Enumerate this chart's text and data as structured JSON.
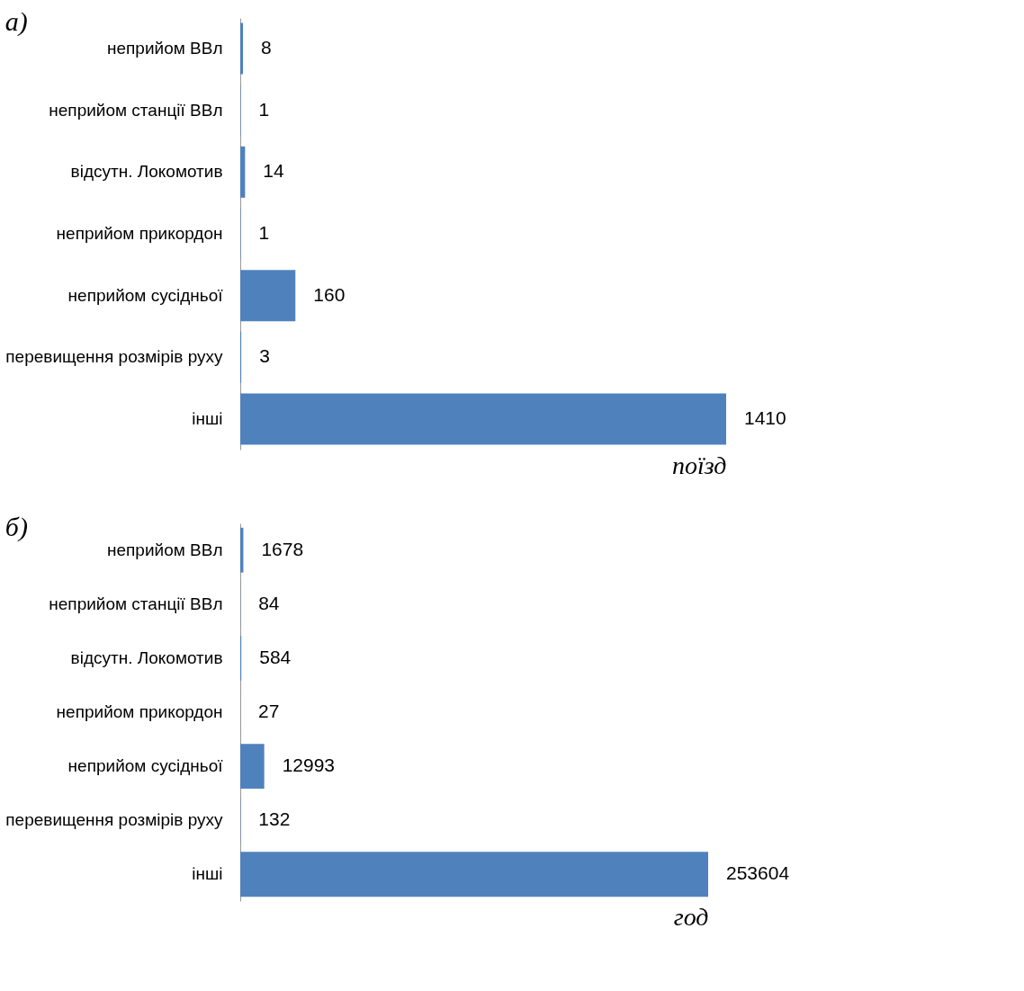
{
  "chart_data": [
    {
      "type": "bar",
      "orientation": "horizontal",
      "title": "а)",
      "xlabel": "поїзд",
      "data_labels": true,
      "color": "#4f81bd",
      "categories": [
        "неприйом ВВл",
        "неприйом станції ВВл",
        "відсутн. Локомотив",
        "неприйом прикордон",
        "неприйом сусідньої",
        "перевищення розмірів руху",
        "інші"
      ],
      "values": [
        8,
        1,
        14,
        1,
        160,
        3,
        1410
      ]
    },
    {
      "type": "bar",
      "orientation": "horizontal",
      "title": "б)",
      "xlabel": "год",
      "data_labels": true,
      "color": "#4f81bd",
      "categories": [
        "неприйом ВВл",
        "неприйом станції ВВл",
        "відсутн. Локомотив",
        "неприйом прикордон",
        "неприйом сусідньої",
        "перевищення розмірів руху",
        "інші"
      ],
      "values": [
        1678,
        84,
        584,
        27,
        12993,
        132,
        253604
      ]
    }
  ]
}
